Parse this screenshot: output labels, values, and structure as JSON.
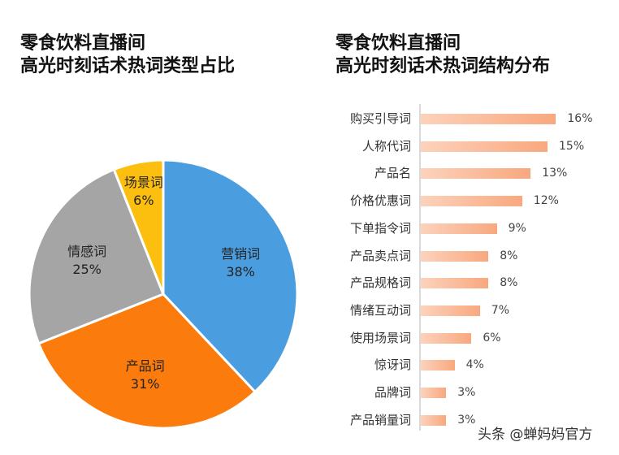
{
  "left_chart": {
    "title_line1": "零食饮料直播间",
    "title_line2": "高光时刻话术热词类型占比"
  },
  "right_chart": {
    "title_line1": "零食饮料直播间",
    "title_line2": "高光时刻话术热词结构分布"
  },
  "watermark": "头条 @蝉妈妈官方",
  "chart_data": [
    {
      "type": "pie",
      "title": "零食饮料直播间 高光时刻话术热词类型占比",
      "categories": [
        "营销词",
        "产品词",
        "情感词",
        "场景词"
      ],
      "values": [
        38,
        31,
        25,
        6
      ],
      "labels": [
        "38%",
        "31%",
        "25%",
        "6%"
      ],
      "colors": [
        "#4a9ddf",
        "#fb7c0c",
        "#a5a5a5",
        "#fdbf0f"
      ],
      "start_angle": "top, clockwise",
      "legend": "none (data labels inside slices)"
    },
    {
      "type": "bar",
      "orientation": "horizontal",
      "title": "零食饮料直播间 高光时刻话术热词结构分布",
      "categories": [
        "购买引导词",
        "人称代词",
        "产品名",
        "价格优惠词",
        "下单指令词",
        "产品卖点词",
        "产品规格词",
        "情绪互动词",
        "使用场景词",
        "惊讶词",
        "品牌词",
        "产品销量词"
      ],
      "values": [
        16,
        15,
        13,
        12,
        9,
        8,
        8,
        7,
        6,
        4,
        3,
        3
      ],
      "labels": [
        "16%",
        "15%",
        "13%",
        "12%",
        "9%",
        "8%",
        "8%",
        "7%",
        "6%",
        "4%",
        "3%",
        "3%"
      ],
      "xlabel": "",
      "ylabel": "",
      "grid": false,
      "bar_color": "gradient #fcd2bc → #f8a87e"
    }
  ]
}
